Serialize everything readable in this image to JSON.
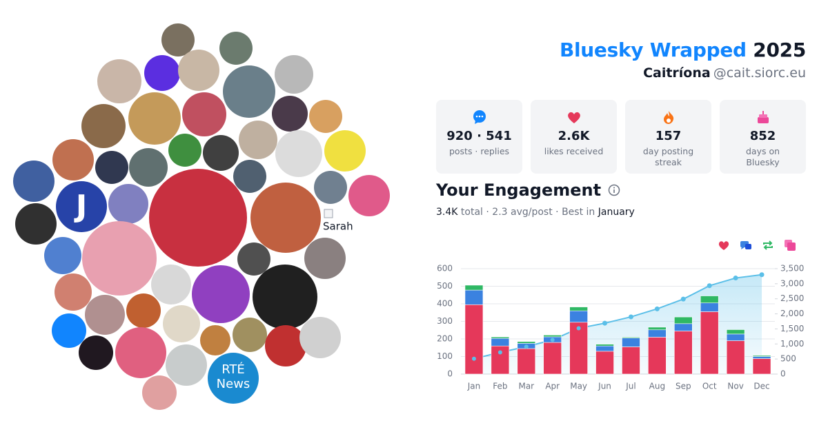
{
  "header": {
    "title": "Bluesky Wrapped",
    "year": "2025",
    "name": "Caitríona",
    "handle": "@cait.siorc.eu"
  },
  "avatars": {
    "logo_letter": "J",
    "news_line1": "RTÉ",
    "news_line2": "News",
    "broken_image_alt": "Sarah"
  },
  "stats": [
    {
      "value": "920 · 541",
      "label": "posts · replies"
    },
    {
      "value": "2.6K",
      "label": "likes received"
    },
    {
      "value": "157",
      "label": "day posting streak"
    },
    {
      "value": "852",
      "label": "days on Bluesky"
    }
  ],
  "engagement": {
    "title": "Your Engagement",
    "total": "3.4K",
    "total_label": "total",
    "separator": "·",
    "average": "2.3 avg/post",
    "best_label": "Best in",
    "best_month": "January"
  },
  "chart_data": {
    "type": "bar",
    "stacked": true,
    "categories": [
      "Jan",
      "Feb",
      "Mar",
      "Apr",
      "May",
      "Jun",
      "Jul",
      "Aug",
      "Sep",
      "Oct",
      "Nov",
      "Dec"
    ],
    "series": [
      {
        "color": "#e5385a",
        "values": [
          395,
          160,
          145,
          180,
          295,
          130,
          155,
          210,
          245,
          355,
          190,
          88
        ]
      },
      {
        "color": "#3b82e0",
        "values": [
          83,
          43,
          30,
          32,
          65,
          30,
          50,
          42,
          42,
          50,
          38,
          12
        ]
      },
      {
        "color": "#2fb864",
        "values": [
          28,
          8,
          10,
          10,
          22,
          10,
          5,
          15,
          38,
          40,
          25,
          6
        ]
      },
      {
        "type": "line",
        "axis": "y2",
        "color": "#5bbfe8",
        "values": [
          510,
          720,
          910,
          1135,
          1520,
          1690,
          1900,
          2165,
          2490,
          2935,
          3190,
          3300
        ]
      }
    ],
    "ylim": [
      0,
      600
    ],
    "yticks": [
      0,
      100,
      200,
      300,
      400,
      500,
      600
    ],
    "y2lim": [
      0,
      3500
    ],
    "y2ticks": [
      0,
      500,
      {
        "value": 1000,
        "label": "1,000"
      },
      {
        "value": 1500,
        "label": "1,500"
      },
      {
        "value": 2000,
        "label": "2,000"
      },
      {
        "value": 2500,
        "label": "2,500"
      },
      {
        "value": 3000,
        "label": "3,000"
      },
      {
        "value": 3500,
        "label": "3,500"
      }
    ],
    "grid": true
  }
}
